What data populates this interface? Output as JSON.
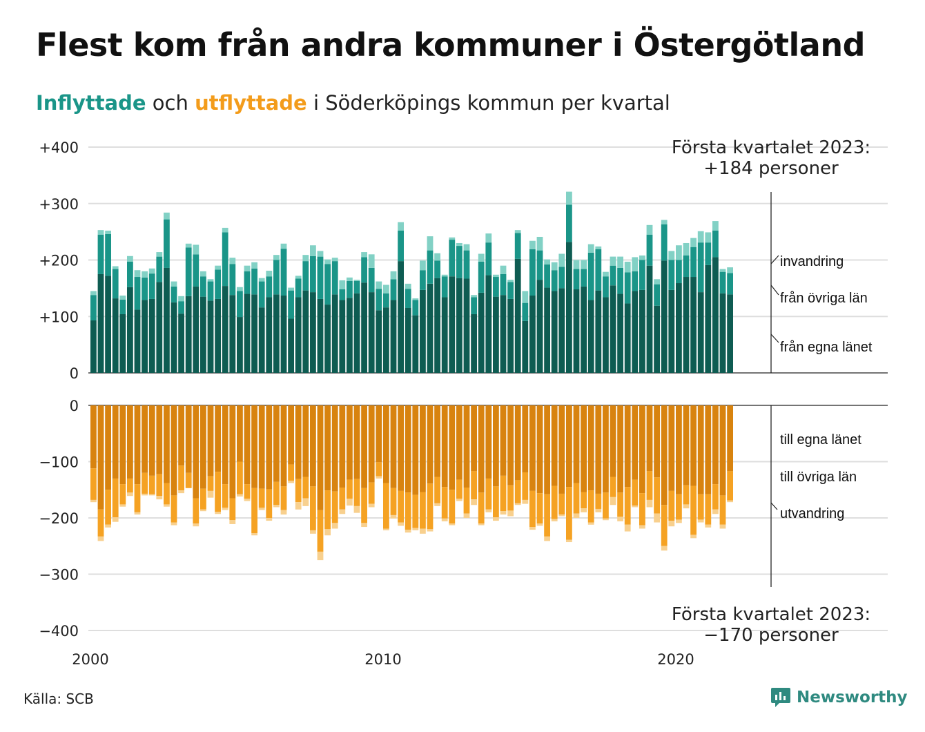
{
  "title": "Flest kom från andra kommuner i Östergötland",
  "subtitle": {
    "highlight_in": "Inflyttade",
    "and": "och",
    "highlight_out": "utflyttade",
    "rest": "i Söderköpings kommun per kvartal"
  },
  "colors": {
    "in_own_county": "#0e5c52",
    "in_other_counties": "#1a9588",
    "in_immigration": "#82d1c5",
    "out_own_county": "#d8830f",
    "out_other_counties": "#f5a223",
    "out_emigration": "#f8d08e",
    "highlight_in": "#1a9588",
    "highlight_out": "#f39c1b",
    "brand": "#2f8a80"
  },
  "chart_data": {
    "type": "bar",
    "stacked": true,
    "grid": true,
    "top_panel": {
      "ylim": [
        0,
        400
      ],
      "yticks": [
        "+400",
        "+300",
        "+200",
        "+100",
        "0"
      ],
      "ytick_values": [
        400,
        300,
        200,
        100,
        0
      ],
      "series": [
        {
          "name": "från egna länet",
          "values": [
            93,
            175,
            172,
            132,
            104,
            152,
            112,
            129,
            131,
            161,
            186,
            125,
            105,
            136,
            153,
            135,
            128,
            131,
            154,
            138,
            99,
            140,
            139,
            116,
            134,
            139,
            137,
            96,
            134,
            146,
            143,
            131,
            121,
            139,
            129,
            133,
            141,
            160,
            143,
            111,
            116,
            129,
            198,
            115,
            102,
            147,
            158,
            168,
            134,
            171,
            168,
            167,
            104,
            142,
            173,
            135,
            138,
            131,
            202,
            92,
            137,
            165,
            151,
            145,
            150,
            232,
            148,
            153,
            129,
            146,
            134,
            155,
            140,
            123,
            145,
            147,
            190,
            119,
            199,
            147,
            159,
            170,
            170,
            143,
            191,
            205,
            141,
            139
          ]
        },
        {
          "name": "från övriga län",
          "values": [
            45,
            70,
            74,
            52,
            26,
            45,
            58,
            40,
            45,
            45,
            86,
            28,
            22,
            86,
            57,
            36,
            34,
            52,
            95,
            55,
            46,
            40,
            46,
            46,
            37,
            61,
            83,
            50,
            33,
            52,
            64,
            75,
            72,
            59,
            19,
            30,
            22,
            45,
            43,
            38,
            25,
            37,
            54,
            34,
            27,
            35,
            59,
            31,
            37,
            65,
            57,
            50,
            30,
            55,
            58,
            35,
            37,
            30,
            46,
            32,
            82,
            52,
            41,
            37,
            38,
            66,
            36,
            31,
            84,
            73,
            37,
            35,
            46,
            55,
            35,
            53,
            55,
            38,
            64,
            53,
            41,
            38,
            53,
            88,
            40,
            47,
            38,
            38
          ]
        },
        {
          "name": "invandring",
          "values": [
            7,
            8,
            6,
            5,
            7,
            10,
            12,
            11,
            9,
            8,
            12,
            9,
            9,
            7,
            17,
            9,
            4,
            7,
            8,
            11,
            7,
            10,
            11,
            6,
            10,
            9,
            9,
            5,
            5,
            11,
            19,
            10,
            8,
            6,
            16,
            6,
            2,
            9,
            24,
            13,
            15,
            14,
            15,
            9,
            3,
            17,
            25,
            13,
            3,
            4,
            5,
            11,
            4,
            14,
            16,
            4,
            15,
            4,
            5,
            21,
            15,
            24,
            9,
            14,
            23,
            23,
            16,
            16,
            15,
            5,
            8,
            16,
            20,
            19,
            25,
            8,
            17,
            9,
            8,
            16,
            26,
            22,
            16,
            20,
            18,
            17,
            5,
            10
          ]
        }
      ]
    },
    "bottom_panel": {
      "ylim": [
        -400,
        0
      ],
      "yticks": [
        "0",
        "−100",
        "−200",
        "−300",
        "−400"
      ],
      "ytick_values": [
        0,
        -100,
        -200,
        -300,
        -400
      ],
      "series": [
        {
          "name": "till egna länet",
          "values": [
            112,
            185,
            150,
            130,
            140,
            130,
            140,
            120,
            125,
            122,
            138,
            160,
            107,
            120,
            165,
            148,
            126,
            118,
            140,
            165,
            100,
            140,
            147,
            148,
            149,
            136,
            144,
            105,
            131,
            127,
            144,
            186,
            151,
            153,
            146,
            132,
            131,
            147,
            137,
            101,
            138,
            147,
            152,
            155,
            159,
            154,
            139,
            127,
            145,
            150,
            132,
            146,
            117,
            155,
            130,
            144,
            125,
            142,
            133,
            119,
            152,
            156,
            158,
            143,
            157,
            145,
            138,
            154,
            151,
            157,
            155,
            127,
            155,
            145,
            132,
            156,
            117,
            128,
            177,
            152,
            158,
            142,
            143,
            158,
            158,
            140,
            160,
            117
          ]
        },
        {
          "name": "till övriga län",
          "values": [
            56,
            48,
            62,
            69,
            36,
            25,
            50,
            37,
            33,
            39,
            38,
            48,
            44,
            27,
            45,
            37,
            26,
            71,
            42,
            39,
            58,
            26,
            80,
            34,
            51,
            41,
            42,
            29,
            41,
            38,
            78,
            74,
            69,
            56,
            39,
            34,
            48,
            62,
            38,
            25,
            81,
            48,
            56,
            66,
            59,
            65,
            81,
            47,
            56,
            60,
            34,
            46,
            50,
            55,
            55,
            55,
            63,
            45,
            41,
            49,
            64,
            54,
            75,
            59,
            37,
            94,
            54,
            29,
            57,
            27,
            46,
            36,
            43,
            67,
            46,
            57,
            51,
            64,
            73,
            53,
            45,
            34,
            87,
            45,
            54,
            45,
            52,
            52
          ]
        },
        {
          "name": "utvandring",
          "values": [
            4,
            8,
            5,
            8,
            4,
            6,
            4,
            3,
            2,
            6,
            4,
            5,
            5,
            0,
            5,
            3,
            12,
            4,
            4,
            7,
            4,
            4,
            4,
            4,
            5,
            4,
            8,
            4,
            13,
            14,
            6,
            15,
            11,
            10,
            8,
            12,
            12,
            7,
            6,
            4,
            3,
            6,
            6,
            5,
            4,
            9,
            4,
            5,
            5,
            3,
            4,
            8,
            10,
            3,
            5,
            6,
            6,
            10,
            3,
            7,
            5,
            4,
            8,
            4,
            3,
            4,
            8,
            7,
            4,
            6,
            3,
            14,
            8,
            12,
            3,
            6,
            13,
            16,
            8,
            10,
            6,
            7,
            6,
            5,
            5,
            8,
            7,
            3
          ]
        }
      ]
    },
    "x_ticks": [
      {
        "label": "2000",
        "value": 2000
      },
      {
        "label": "2010",
        "value": 2010
      },
      {
        "label": "2020",
        "value": 2020
      }
    ],
    "x_start": 2000,
    "quarters_per_year": 4,
    "annotations": {
      "top_line1": "Första kvartalet 2023:",
      "top_line2": "+184 personer",
      "bottom_line1": "Första kvartalet 2023:",
      "bottom_line2": "−170 personer"
    },
    "top_labels": [
      "invandring",
      "från övriga län",
      "från egna länet"
    ],
    "bottom_labels": [
      "till egna länet",
      "till övriga län",
      "utvandring"
    ]
  },
  "footer": {
    "source": "Källa: SCB",
    "brand": "Newsworthy"
  }
}
